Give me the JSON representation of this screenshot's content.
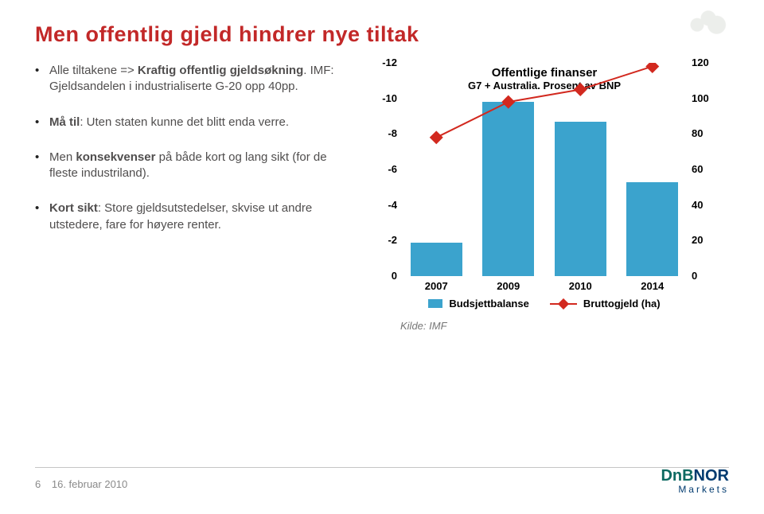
{
  "title": "Men offentlig gjeld hindrer nye tiltak",
  "bullets": [
    {
      "pre": "Alle tiltakene => ",
      "bold": "Kraftig offentlig gjeldsøkning",
      "post": ". IMF: Gjeldsandelen i industrialiserte G-20 opp 40pp."
    },
    {
      "pre": "",
      "bold": "Må til",
      "post": ": Uten staten kunne det blitt enda verre."
    },
    {
      "pre": "Men ",
      "bold": "konsekvenser",
      "post": " på både kort og lang sikt (for de fleste industriland)."
    },
    {
      "pre": "",
      "bold": "Kort sikt",
      "post": ": Store gjeldsutstedelser, skvise ut andre utstedere, fare for høyere renter."
    }
  ],
  "chart": {
    "title_line1": "Offentlige finanser",
    "title_line2": "G7 + Australia. Prosent av BNP",
    "type": "bar+line",
    "categories": [
      "2007",
      "2009",
      "2010",
      "2014"
    ],
    "bars": {
      "label": "Budsjettbalanse",
      "values": [
        -1.9,
        -9.8,
        -8.7,
        -5.3
      ],
      "color": "#3ba3cd",
      "width_fraction": 0.72
    },
    "line": {
      "label": "Bruttogjeld (ha)",
      "values": [
        78,
        98,
        105,
        118
      ],
      "color": "#d2291f",
      "marker": "diamond",
      "marker_size": 12,
      "line_width": 2
    },
    "y_left": {
      "min": 0,
      "max": -12,
      "step": -2,
      "labels": [
        "-12",
        "-10",
        "-8",
        "-6",
        "-4",
        "-2",
        "0"
      ]
    },
    "y_right": {
      "min": 0,
      "max": 120,
      "step": 20,
      "labels": [
        "120",
        "100",
        "80",
        "60",
        "40",
        "20",
        "0"
      ]
    },
    "background_color": "#ffffff",
    "font_size_axis": 13,
    "font_size_title": 15,
    "source": "Kilde: IMF"
  },
  "footer": {
    "page": "6",
    "date": "16. februar 2010"
  },
  "logo": {
    "line1a": "DnB",
    "line1b": "NOR",
    "line2": "Markets",
    "color_green": "#0e6a62",
    "color_blue": "#003a6f"
  }
}
